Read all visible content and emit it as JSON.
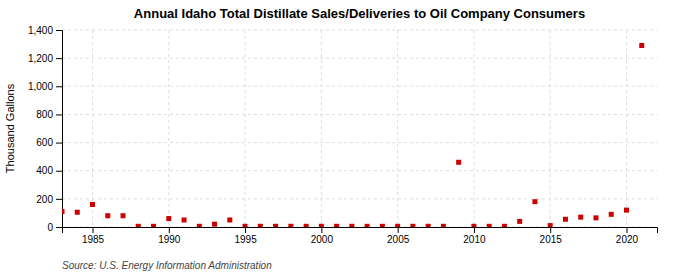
{
  "chart_data": {
    "type": "scatter",
    "title": "Annual Idaho Total Distillate Sales/Deliveries to Oil Company Consumers",
    "ylabel": "Thousand Gallons",
    "source": "Source: U.S. Energy Information Administration",
    "x": [
      1983,
      1984,
      1985,
      1986,
      1987,
      1988,
      1989,
      1990,
      1991,
      1992,
      1993,
      1994,
      1995,
      1996,
      1997,
      1998,
      1999,
      2000,
      2001,
      2002,
      2003,
      2004,
      2005,
      2006,
      2007,
      2008,
      2009,
      2010,
      2011,
      2012,
      2013,
      2014,
      2015,
      2016,
      2017,
      2018,
      2019,
      2020,
      2021
    ],
    "values": [
      110,
      105,
      160,
      80,
      80,
      5,
      5,
      60,
      50,
      5,
      20,
      50,
      5,
      5,
      5,
      5,
      5,
      5,
      5,
      5,
      5,
      5,
      5,
      5,
      5,
      5,
      460,
      5,
      5,
      5,
      40,
      180,
      10,
      55,
      70,
      65,
      90,
      120,
      1290
    ],
    "color": "#cc0000",
    "marker": "square",
    "xlim": [
      1983,
      2022
    ],
    "ylim": [
      0,
      1400
    ],
    "xticks": [
      1985,
      1990,
      1995,
      2000,
      2005,
      2010,
      2015,
      2020
    ],
    "yticks": [
      0,
      200,
      400,
      600,
      800,
      {
        "value": 1000,
        "label": "1,000"
      },
      {
        "value": 1200,
        "label": "1,200"
      },
      {
        "value": 1400,
        "label": "1,400"
      }
    ],
    "grid": true
  }
}
